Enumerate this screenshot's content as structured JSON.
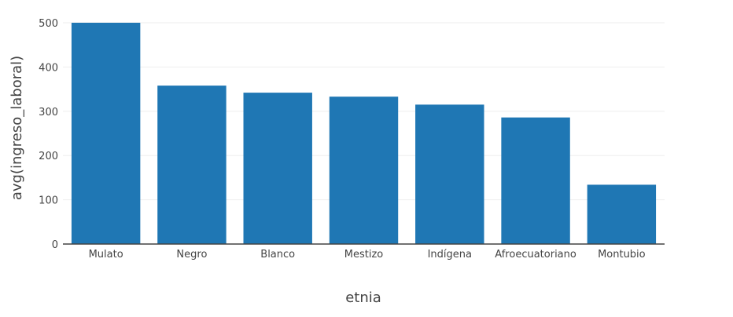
{
  "chart_data": {
    "type": "bar",
    "title": "",
    "xlabel": "etnia",
    "ylabel": "avg(ingreso_laboral)",
    "categories": [
      "Mulato",
      "Negro",
      "Blanco",
      "Mestizo",
      "Indígena",
      "Afroecuatoriano",
      "Montubio"
    ],
    "values": [
      500,
      358,
      342,
      333,
      315,
      286,
      134
    ],
    "ylim": [
      0,
      500
    ],
    "yticks": [
      0,
      100,
      200,
      300,
      400,
      500
    ],
    "grid": true,
    "legend": "none",
    "bar_color": "#1f77b4"
  }
}
